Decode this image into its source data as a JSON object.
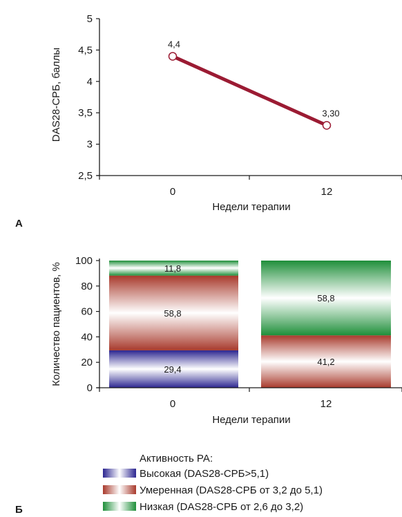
{
  "panels": {
    "a_letter": "А",
    "b_letter": "Б"
  },
  "chart_data": [
    {
      "type": "line",
      "title": "",
      "xlabel": "Недели терапии",
      "ylabel": "DAS28-СРБ, баллы",
      "categories": [
        "0",
        "12"
      ],
      "values": [
        4.4,
        3.3
      ],
      "value_labels": [
        "4,4",
        "3,30"
      ],
      "ylim": [
        2.5,
        5
      ],
      "yticks": [
        2.5,
        3,
        3.5,
        4,
        4.5,
        5
      ],
      "ytick_labels": [
        "2,5",
        "3",
        "3,5",
        "4",
        "4,5",
        "5"
      ],
      "grid": false,
      "line_color": "#9b1b33"
    },
    {
      "type": "bar",
      "stacked": true,
      "title": "",
      "xlabel": "Недели терапии",
      "ylabel": "Количество пациентов, %",
      "categories": [
        "0",
        "12"
      ],
      "ylim": [
        0,
        100
      ],
      "yticks": [
        0,
        20,
        40,
        60,
        80,
        100
      ],
      "ytick_labels": [
        "0",
        "20",
        "40",
        "60",
        "80",
        "100"
      ],
      "series": [
        {
          "key": "high",
          "values": [
            29.4,
            0
          ],
          "labels": [
            "29,4",
            ""
          ],
          "color": "#2b2590"
        },
        {
          "key": "moderate",
          "values": [
            58.8,
            41.2
          ],
          "labels": [
            "58,8",
            "41,2"
          ],
          "color": "#a83a2c"
        },
        {
          "key": "low",
          "values": [
            11.8,
            58.8
          ],
          "labels": [
            "11,8",
            "58,8"
          ],
          "color": "#1f8f3a"
        }
      ],
      "legend": {
        "title": "Активность РА:",
        "items": [
          {
            "key": "high",
            "label": "Высокая (DAS28-СРБ>5,1)",
            "color": "#2b2590"
          },
          {
            "key": "moderate",
            "label": "Умеренная (DAS28-СРБ от 3,2 до 5,1)",
            "color": "#a83a2c"
          },
          {
            "key": "low",
            "label": "Низкая (DAS28-СРБ от 2,6 до 3,2)",
            "color": "#1f8f3a"
          }
        ],
        "position": "bottom"
      }
    }
  ]
}
